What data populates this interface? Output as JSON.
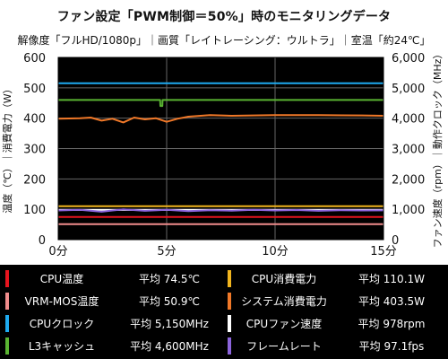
{
  "title": "ファン設定「PWM制御＝50%」時のモニタリングデータ",
  "subtitle": "解像度「フルHD/1080p」｜画質「レイトレーシング：ウルトラ」｜室温「約24℃」",
  "chart_data": {
    "type": "line",
    "x_ticks": [
      "0分",
      "5分",
      "10分",
      "15分"
    ],
    "xlim": [
      0,
      15
    ],
    "ylim_left": [
      0,
      600
    ],
    "ylim_right": [
      0,
      6000
    ],
    "ylabel_left": "温度（℃）｜消費電力（W）",
    "ylabel_right": "ファン速度（rpm）｜動作クロック（MHz）",
    "left_ticks": [
      "0",
      "100",
      "200",
      "300",
      "400",
      "500",
      "600"
    ],
    "right_ticks": [
      "0",
      "1,000",
      "2,000",
      "3,000",
      "4,000",
      "5,000",
      "6,000"
    ],
    "grid": true,
    "series": [
      {
        "name": "CPUクロック",
        "color": "#1eaaf0",
        "axis": "right",
        "x": [
          0,
          15
        ],
        "values": [
          5150,
          5150
        ]
      },
      {
        "name": "L3キャッシュ",
        "color": "#5ab432",
        "axis": "right",
        "x": [
          0,
          4.7,
          4.71,
          4.8,
          4.81,
          15
        ],
        "values": [
          4600,
          4600,
          4400,
          4400,
          4600,
          4600
        ]
      },
      {
        "name": "システム消費電力",
        "color": "#f07828",
        "axis": "left",
        "x": [
          0,
          1,
          1.5,
          2,
          2.5,
          3,
          3.5,
          4,
          4.5,
          5,
          5.5,
          6,
          7,
          8,
          10,
          12,
          14,
          15
        ],
        "values": [
          398,
          400,
          402,
          392,
          398,
          386,
          402,
          396,
          400,
          388,
          398,
          405,
          410,
          408,
          410,
          410,
          409,
          408
        ]
      },
      {
        "name": "CPU消費電力",
        "color": "#f0b41e",
        "axis": "left",
        "x": [
          0,
          15
        ],
        "values": [
          110,
          110
        ]
      },
      {
        "name": "CPUファン速度",
        "color": "#ffffff",
        "axis": "right",
        "x": [
          0,
          15
        ],
        "values": [
          978,
          978
        ]
      },
      {
        "name": "フレームレート",
        "color": "#8c64dc",
        "axis": "right",
        "x": [
          0,
          1,
          2,
          3,
          4,
          5,
          6,
          7,
          8,
          9,
          10,
          11,
          12,
          13,
          14,
          15
        ],
        "values": [
          960,
          980,
          920,
          1000,
          950,
          985,
          940,
          970,
          955,
          980,
          960,
          975,
          950,
          970,
          960,
          965
        ]
      },
      {
        "name": "CPU温度",
        "color": "#e6141e",
        "axis": "left",
        "x": [
          0,
          15
        ],
        "values": [
          74.5,
          74.5
        ]
      },
      {
        "name": "VRM-MOS温度",
        "color": "#f08c8c",
        "axis": "left",
        "x": [
          0,
          15
        ],
        "values": [
          50.9,
          50.9
        ]
      }
    ]
  },
  "legend": [
    {
      "name": "CPU温度",
      "value": "平均 74.5℃",
      "color": "#e6141e"
    },
    {
      "name": "CPU消費電力",
      "value": "平均 110.1W",
      "color": "#f0b41e"
    },
    {
      "name": "VRM-MOS温度",
      "value": "平均 50.9℃",
      "color": "#f08c8c"
    },
    {
      "name": "システム消費電力",
      "value": "平均 403.5W",
      "color": "#f07828"
    },
    {
      "name": "CPUクロック",
      "value": "平均 5,150MHz",
      "color": "#1eaaf0"
    },
    {
      "name": "CPUファン速度",
      "value": "平均 978rpm",
      "color": "#ffffff"
    },
    {
      "name": "L3キャッシュ",
      "value": "平均 4,600MHz",
      "color": "#5ab432"
    },
    {
      "name": "フレームレート",
      "value": "平均 97.1fps",
      "color": "#8c64dc"
    }
  ]
}
